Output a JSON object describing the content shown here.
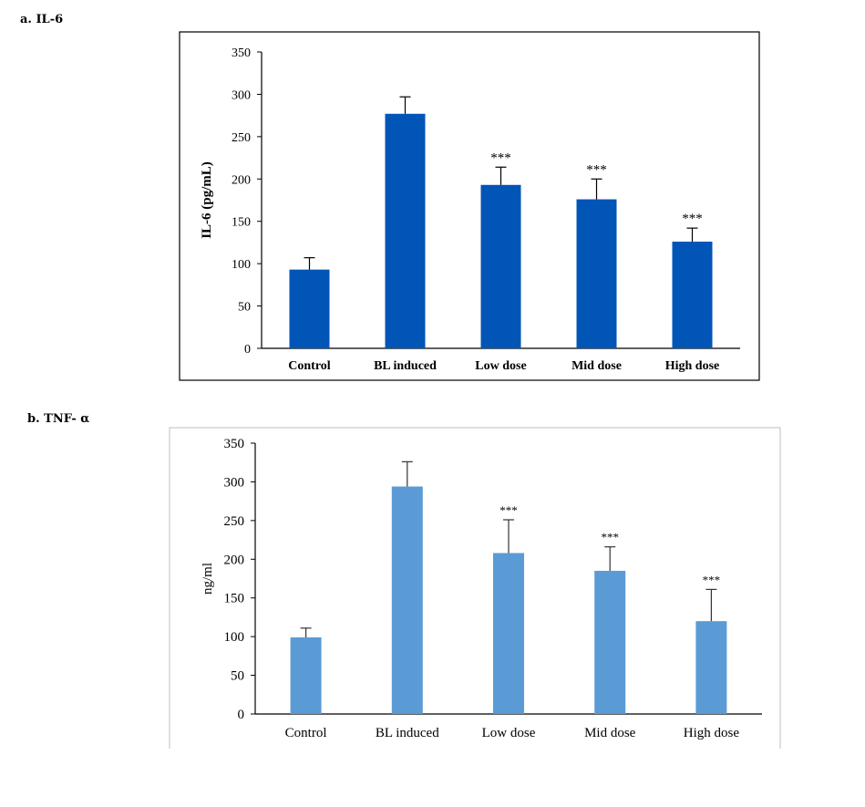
{
  "panels": [
    {
      "label": "a. IL-6"
    },
    {
      "label": "b. TNF- α"
    }
  ],
  "chart_data": [
    {
      "type": "bar",
      "categories": [
        "Control",
        "BL induced",
        "Low dose",
        "Mid dose",
        "High dose"
      ],
      "values": [
        93,
        277,
        193,
        176,
        126
      ],
      "errors": [
        14,
        20,
        21,
        24,
        16
      ],
      "significance": [
        "",
        "",
        "***",
        "***",
        "***"
      ],
      "ylabel": "IL-6 (pg/mL)",
      "ylim": [
        0,
        350
      ],
      "yticks": [
        0,
        50,
        100,
        150,
        200,
        250,
        300,
        350
      ],
      "color": "#0055b7",
      "grid": false,
      "legend": false
    },
    {
      "type": "bar",
      "categories": [
        "Control",
        "BL induced",
        "Low dose",
        "Mid dose",
        "High dose"
      ],
      "values": [
        99,
        294,
        208,
        185,
        120
      ],
      "errors": [
        12,
        32,
        43,
        31,
        41
      ],
      "significance": [
        "",
        "",
        "***",
        "***",
        "***"
      ],
      "ylabel": "ng/ml",
      "ylim": [
        0,
        350
      ],
      "yticks": [
        0,
        50,
        100,
        150,
        200,
        250,
        300,
        350
      ],
      "color": "#5b9bd5",
      "grid": false,
      "legend": false
    }
  ]
}
